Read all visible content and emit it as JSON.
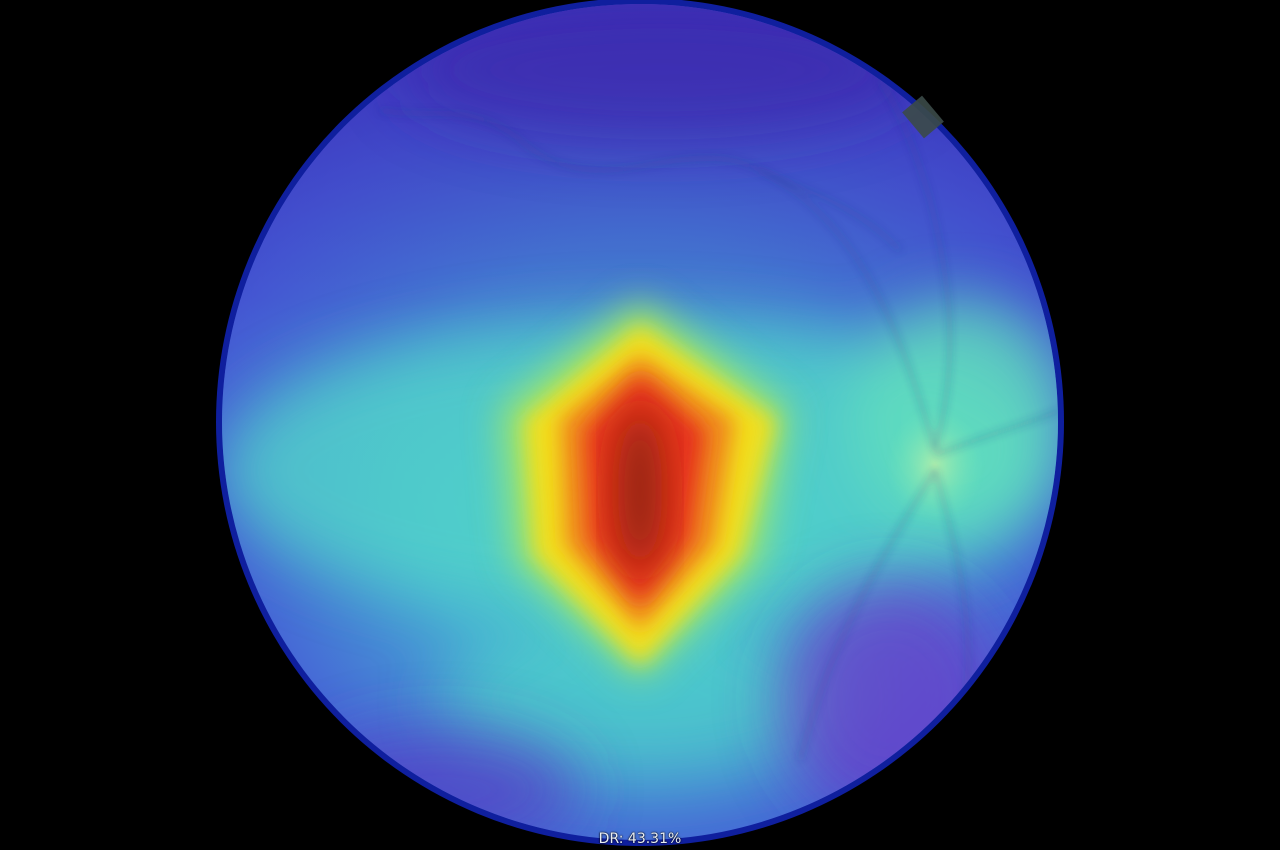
{
  "caption": {
    "label": "DR",
    "probability_text": "DR: 43.31%",
    "probability_percent": 43.31
  },
  "heatmap": {
    "colormap": "jet",
    "overlay_colors": {
      "low": "#3a3fc9",
      "low_mid": "#3f8fd6",
      "mid": "#52e0c0",
      "high_mid": "#f2e21c",
      "high": "#e8381a",
      "peak": "#8a2a10"
    },
    "rim_color": "#1224a8"
  }
}
